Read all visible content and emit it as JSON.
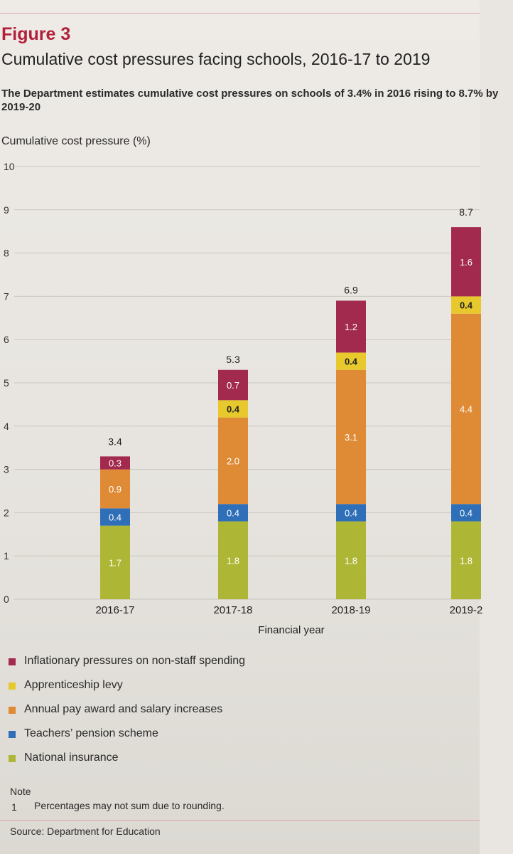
{
  "figure": {
    "label": "Figure 3",
    "title": "Cumulative cost pressures facing schools, 2016-17 to 2019",
    "subtitle": "The Department estimates cumulative cost pressures on schools of 3.4% in 2016 rising to 8.7% by 2019-20"
  },
  "colors": {
    "national_insurance": "#aeb735",
    "pension": "#2f6fb8",
    "pay_award": "#df8a35",
    "apprenticeship": "#e7c92d",
    "inflation": "#a32a4f",
    "grid": "#c9c6c0",
    "title_accent": "#b2203b"
  },
  "chart_data": {
    "type": "bar",
    "stacked": true,
    "title": "",
    "ylabel": "Cumulative cost pressure (%)",
    "xlabel": "Financial year",
    "ylim": [
      0,
      10
    ],
    "yticks": [
      0,
      1,
      2,
      3,
      4,
      5,
      6,
      7,
      8,
      9,
      10
    ],
    "grid": true,
    "legend_position": "bottom",
    "categories": [
      "2016-17",
      "2017-18",
      "2018-19",
      "2019-2"
    ],
    "series": [
      {
        "name": "National insurance",
        "key": "national_insurance",
        "values": [
          1.7,
          1.8,
          1.8,
          1.8
        ]
      },
      {
        "name": "Teachers' pension scheme",
        "key": "pension",
        "values": [
          0.4,
          0.4,
          0.4,
          0.4
        ]
      },
      {
        "name": "Annual pay award and salary increases",
        "key": "pay_award",
        "values": [
          0.9,
          2.0,
          3.1,
          4.4
        ]
      },
      {
        "name": "Apprenticeship levy",
        "key": "apprenticeship",
        "values": [
          0,
          0.4,
          0.4,
          0.4
        ]
      },
      {
        "name": "Inflationary pressures on non-staff spending",
        "key": "inflation",
        "values": [
          0.3,
          0.7,
          1.2,
          1.6
        ]
      }
    ],
    "totals": [
      3.4,
      5.3,
      6.9,
      8.7
    ]
  },
  "legend": [
    {
      "label": "Inflationary pressures on non-staff spending",
      "color_key": "inflation"
    },
    {
      "label": "Apprenticeship levy",
      "color_key": "apprenticeship"
    },
    {
      "label": "Annual pay award and salary increases",
      "color_key": "pay_award"
    },
    {
      "label": "Teachers’ pension scheme",
      "color_key": "pension"
    },
    {
      "label": "National insurance",
      "color_key": "national_insurance"
    }
  ],
  "note": {
    "title": "Note",
    "number": "1",
    "text": "Percentages may not sum due to rounding."
  },
  "source": "Source: Department for Education"
}
